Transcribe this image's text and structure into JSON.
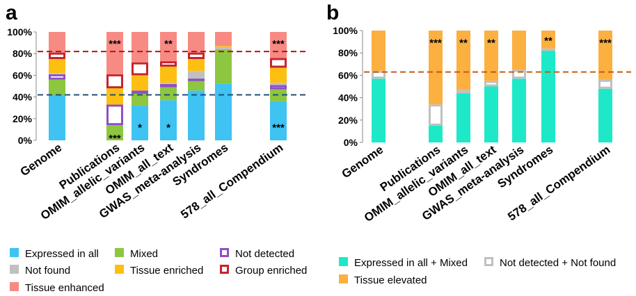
{
  "chart_data": [
    {
      "panel": "a",
      "type": "bar",
      "stacked": true,
      "categories": [
        "Genome",
        "Publications",
        "OMIM_allelic_variants",
        "OMIM_all_text",
        "GWAS_meta-analysis",
        "Syndromes",
        "578_all_Compendium"
      ],
      "ylim": [
        0,
        100
      ],
      "yticks": [
        "0%",
        "20%",
        "40%",
        "60%",
        "80%",
        "100%"
      ],
      "legend_position": "bottom",
      "series": [
        {
          "name": "Expressed in all",
          "color": "#3ec3f2",
          "style": "fill",
          "values": [
            42,
            0,
            32,
            37,
            46,
            52,
            36
          ]
        },
        {
          "name": "Mixed",
          "color": "#8dc63f",
          "style": "fill",
          "values": [
            14,
            14,
            11,
            12,
            10,
            32,
            11
          ]
        },
        {
          "name": "Not detected",
          "color": "#8e4fc6",
          "style": "outline",
          "values": [
            5,
            19,
            3,
            3,
            1,
            0,
            4
          ]
        },
        {
          "name": "Not found",
          "color": "#c0c0c0",
          "style": "fill",
          "values": [
            1,
            0,
            0,
            1,
            7,
            2,
            2
          ]
        },
        {
          "name": "Tissue enriched",
          "color": "#fdbf12",
          "style": "fill",
          "values": [
            13,
            15,
            14,
            15,
            11,
            1,
            14
          ]
        },
        {
          "name": "Group enriched",
          "color": "#c8232c",
          "style": "outline",
          "values": [
            6,
            13,
            12,
            5,
            6,
            0,
            9
          ]
        },
        {
          "name": "Tissue enhanced",
          "color": "#f78a83",
          "style": "fill",
          "values": [
            19,
            39,
            28,
            27,
            19,
            13,
            24
          ]
        }
      ],
      "reference_lines": [
        {
          "y": 82,
          "color": "#b5121b"
        },
        {
          "y": 42,
          "color": "#1f4e79"
        }
      ],
      "annotations": [
        {
          "category": "Publications",
          "y": 89,
          "text": "***"
        },
        {
          "category": "Publications",
          "y": 2,
          "text": "***"
        },
        {
          "category": "OMIM_allelic_variants",
          "y": 12,
          "text": "*"
        },
        {
          "category": "OMIM_all_text",
          "y": 89,
          "text": "**"
        },
        {
          "category": "OMIM_all_text",
          "y": 12,
          "text": "*"
        },
        {
          "category": "578_all_Compendium",
          "y": 89,
          "text": "***"
        },
        {
          "category": "578_all_Compendium",
          "y": 12,
          "text": "***"
        }
      ]
    },
    {
      "panel": "b",
      "type": "bar",
      "stacked": true,
      "categories": [
        "Genome",
        "Publications",
        "OMIM_allelic_variants",
        "OMIM_all_text",
        "GWAS_meta-analysis",
        "Syndromes",
        "578_all_Compendium"
      ],
      "ylim": [
        0,
        100
      ],
      "yticks": [
        "0%",
        "20%",
        "40%",
        "60%",
        "80%",
        "100%"
      ],
      "legend_position": "bottom",
      "series": [
        {
          "name": "Expressed in all + Mixed",
          "color": "#1de9c9",
          "style": "fill",
          "values": [
            57,
            15,
            44,
            50,
            57,
            83,
            48
          ]
        },
        {
          "name": "Not detected + Not found",
          "color": "#c0c0c0",
          "style": "outline",
          "values": [
            7,
            19,
            3,
            5,
            8,
            1,
            8
          ]
        },
        {
          "name": "Tissue elevated",
          "color": "#fbb040",
          "style": "fill",
          "values": [
            36,
            66,
            53,
            45,
            35,
            16,
            44
          ]
        }
      ],
      "reference_lines": [
        {
          "y": 63,
          "color": "#c55a11"
        }
      ],
      "annotations": [
        {
          "category": "Publications",
          "y": 89,
          "text": "***"
        },
        {
          "category": "OMIM_allelic_variants",
          "y": 89,
          "text": "**"
        },
        {
          "category": "OMIM_all_text",
          "y": 89,
          "text": "**"
        },
        {
          "category": "Syndromes",
          "y": 91,
          "text": "**"
        },
        {
          "category": "578_all_Compendium",
          "y": 89,
          "text": "***"
        }
      ]
    }
  ]
}
